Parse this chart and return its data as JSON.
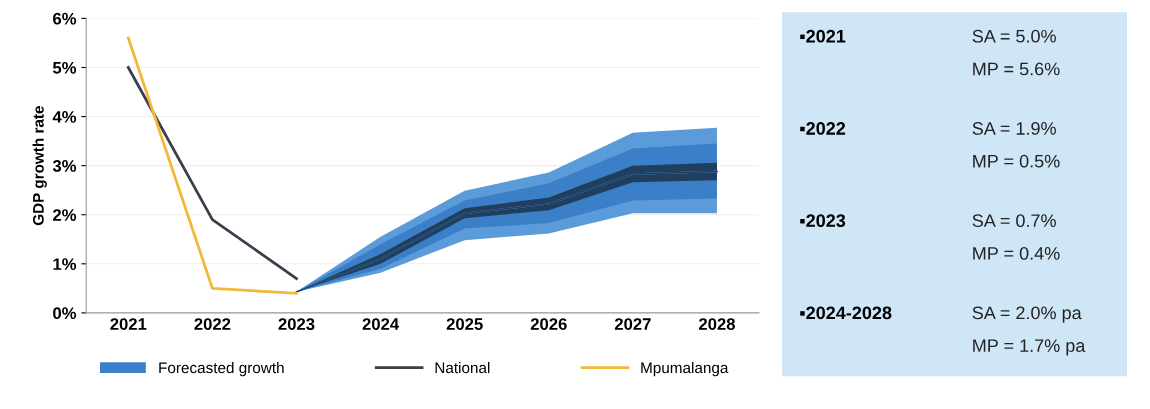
{
  "chart_data": [
    {
      "type": "line",
      "ylabel": "GDP growth rate",
      "categories": [
        "2021",
        "2022",
        "2023",
        "2024",
        "2025",
        "2026",
        "2027",
        "2028"
      ],
      "ylim": [
        0,
        6
      ],
      "yticks": [
        {
          "value": 0,
          "label": "0%"
        },
        {
          "value": 1,
          "label": "1%"
        },
        {
          "value": 2,
          "label": "2%"
        },
        {
          "value": 3,
          "label": "3%"
        },
        {
          "value": 4,
          "label": "4%"
        },
        {
          "value": 5,
          "label": "5%"
        },
        {
          "value": 6,
          "label": "6%"
        }
      ],
      "grid": "y",
      "legend": "bottom",
      "series": [
        {
          "color": "#5b9bd9",
          "values": [
            null,
            null,
            0.43,
            1.1,
            2.03,
            2.22,
            2.83,
            2.88
          ],
          "lower": [
            null,
            null,
            0.43,
            0.82,
            1.48,
            1.62,
            2.03,
            2.03
          ],
          "upper": [
            null,
            null,
            0.43,
            1.55,
            2.49,
            2.86,
            3.67,
            3.77
          ]
        },
        {
          "name": "Forecasted growth",
          "color": "#3a7fc8",
          "values": [
            null,
            null,
            0.43,
            1.1,
            2.03,
            2.22,
            2.83,
            2.88
          ],
          "lower": [
            null,
            null,
            0.43,
            0.9,
            1.72,
            1.83,
            2.29,
            2.33
          ],
          "upper": [
            null,
            null,
            0.43,
            1.4,
            2.29,
            2.64,
            3.35,
            3.45
          ]
        },
        {
          "color": "#203f5e",
          "values": [
            null,
            null,
            0.43,
            1.1,
            2.03,
            2.22,
            2.83,
            2.88
          ],
          "lower": [
            null,
            null,
            0.43,
            1.0,
            1.93,
            2.09,
            2.66,
            2.7
          ],
          "upper": [
            null,
            null,
            0.43,
            1.2,
            2.13,
            2.35,
            3.0,
            3.06
          ]
        },
        {
          "name": "National",
          "color": "#3a3f4a",
          "values": [
            5.0,
            1.9,
            0.7,
            null,
            null,
            null,
            null,
            null
          ]
        },
        {
          "name": "Mpumalanga",
          "color": "#f0b93a",
          "values": [
            5.6,
            0.5,
            0.4,
            null,
            null,
            null,
            null,
            null
          ]
        }
      ]
    },
    {
      "type": "other",
      "annotations": [
        "▪2021",
        "SA = 5.0%",
        "MP = 5.6%",
        "▪2022",
        "SA = 1.9%",
        "MP = 0.5%",
        "▪2023",
        "SA = 0.7%",
        "MP = 0.4%",
        "▪2024-2028",
        "SA = 2.0% pa",
        "MP = 1.7% pa"
      ]
    }
  ]
}
